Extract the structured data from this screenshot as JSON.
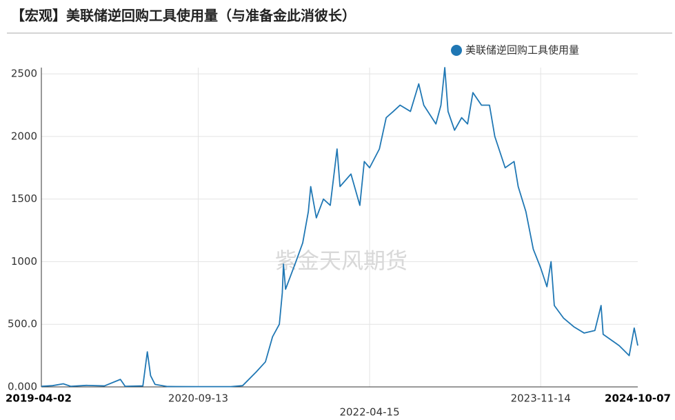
{
  "chart_data": {
    "type": "line",
    "title": "【宏观】美联储逆回购工具使用量（与准备金此消彼长）",
    "watermark": "紫金天风期货",
    "legend_position": "top-right",
    "grid": true,
    "x": [
      "2019-04-02",
      "2019-05-10",
      "2019-06-15",
      "2019-07-10",
      "2019-09-01",
      "2019-11-01",
      "2019-12-25",
      "2020-01-10",
      "2020-03-10",
      "2020-03-25",
      "2020-04-05",
      "2020-04-20",
      "2020-06-01",
      "2020-09-13",
      "2021-01-01",
      "2021-02-10",
      "2021-03-28",
      "2021-04-28",
      "2021-05-22",
      "2021-06-14",
      "2021-06-24",
      "2021-06-28",
      "2021-07-05",
      "2021-08-09",
      "2021-09-01",
      "2021-09-20",
      "2021-09-28",
      "2021-10-17",
      "2021-11-10",
      "2021-12-03",
      "2021-12-26",
      "2022-01-05",
      "2022-02-11",
      "2022-03-13",
      "2022-03-28",
      "2022-04-15",
      "2022-05-18",
      "2022-06-10",
      "2022-07-04",
      "2022-07-27",
      "2022-08-31",
      "2022-09-28",
      "2022-10-15",
      "2022-11-25",
      "2022-12-12",
      "2022-12-25",
      "2023-01-05",
      "2023-01-27",
      "2023-02-20",
      "2023-03-12",
      "2023-03-30",
      "2023-04-28",
      "2023-05-25",
      "2023-06-12",
      "2023-07-17",
      "2023-08-16",
      "2023-08-30",
      "2023-09-25",
      "2023-10-20",
      "2023-11-14",
      "2023-12-05",
      "2023-12-19",
      "2023-12-30",
      "2024-01-30",
      "2024-03-05",
      "2024-04-09",
      "2024-05-15",
      "2024-06-05",
      "2024-06-12",
      "2024-08-05",
      "2024-09-08",
      "2024-09-25",
      "2024-10-07"
    ],
    "series": [
      {
        "name": "美联储逆回购工具使用量",
        "color": "#1f77b4",
        "values": [
          5,
          10,
          25,
          5,
          12,
          8,
          60,
          5,
          8,
          280,
          90,
          20,
          3,
          2,
          2,
          10,
          120,
          200,
          400,
          500,
          750,
          980,
          780,
          1000,
          1150,
          1400,
          1600,
          1350,
          1500,
          1450,
          1900,
          1600,
          1700,
          1450,
          1800,
          1750,
          1900,
          2150,
          2200,
          2250,
          2200,
          2420,
          2250,
          2100,
          2250,
          2550,
          2200,
          2050,
          2150,
          2100,
          2350,
          2250,
          2250,
          2000,
          1750,
          1800,
          1600,
          1400,
          1100,
          950,
          800,
          1000,
          650,
          550,
          480,
          430,
          450,
          650,
          420,
          330,
          250,
          470,
          330
        ]
      }
    ],
    "xlim": [
      "2019-04-02",
      "2024-10-07"
    ],
    "xticks": [
      "2019-04-02",
      "2020-09-13",
      "2022-04-15",
      "2023-11-14",
      "2024-10-07"
    ],
    "ylim": [
      0,
      2550
    ],
    "yticks": [
      {
        "value": 0,
        "label": "0.000"
      },
      {
        "value": 500,
        "label": "500.0"
      },
      1000,
      1500,
      2000,
      2500
    ]
  }
}
